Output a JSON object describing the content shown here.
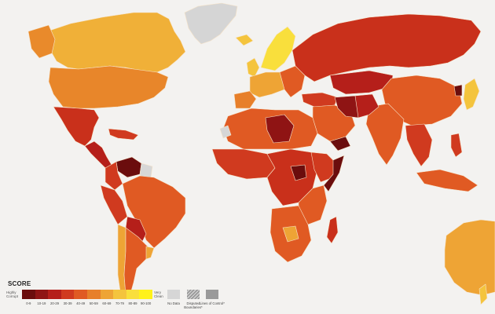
{
  "legend": {
    "title": "SCORE",
    "low_label": "Highly Corrupt",
    "high_label": "Very Clean",
    "bins": [
      {
        "label": "0-9",
        "color": "#6b0d0d"
      },
      {
        "label": "10-19",
        "color": "#8f1414"
      },
      {
        "label": "20-29",
        "color": "#b51f1a"
      },
      {
        "label": "30-39",
        "color": "#d03a1f"
      },
      {
        "label": "40-49",
        "color": "#e05a23"
      },
      {
        "label": "50-59",
        "color": "#e77f2a"
      },
      {
        "label": "60-69",
        "color": "#eea435"
      },
      {
        "label": "70-79",
        "color": "#f4c43d"
      },
      {
        "label": "80-89",
        "color": "#f9df3c"
      },
      {
        "label": "90-100",
        "color": "#fff21a"
      }
    ],
    "no_data": {
      "label": "No Data",
      "color": "#d6d6d6"
    },
    "disputed": {
      "label": "Disputed Boundaries*"
    },
    "control": {
      "label": "Lines of Control*"
    }
  }
}
